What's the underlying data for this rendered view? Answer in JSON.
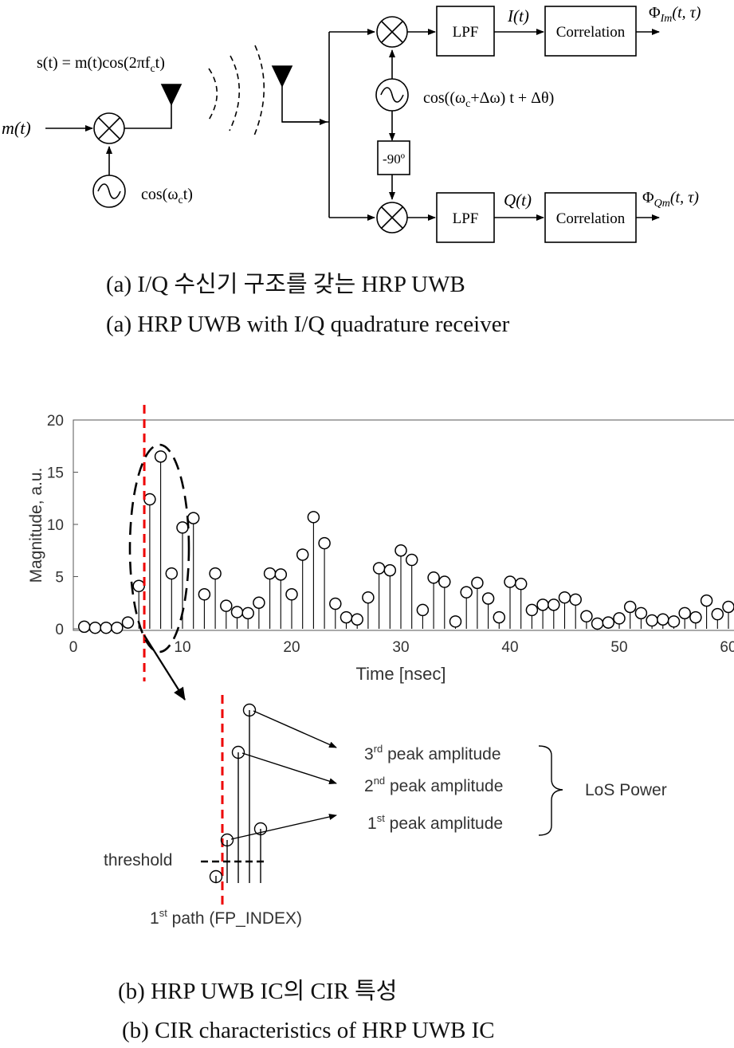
{
  "block_diagram": {
    "transmit_signal": "s(t) = m(t)cos(2πf",
    "transmit_signal_sub": "c",
    "transmit_signal_tail": "t)",
    "input_label": "m(t)",
    "tx_oscillator": "cos(ω",
    "tx_oscillator_sub": "c",
    "tx_oscillator_tail": "t)",
    "rx_oscillator": "cos((ω",
    "rx_oscillator_sub": "c",
    "rx_oscillator_tail": "+Δω) t + Δθ)",
    "phase_shift": "-90º",
    "lpf_top": "LPF",
    "lpf_bottom": "LPF",
    "i_label": "I(t)",
    "q_label": "Q(t)",
    "corr_top": "Correlation",
    "corr_bottom": "Correlation",
    "out_top_main": "Φ",
    "out_top_sub": "Im",
    "out_top_tail": "(t, τ)",
    "out_bottom_main": "Φ",
    "out_bottom_sub": "Qm",
    "out_bottom_tail": "(t, τ)"
  },
  "caption_a_ko": "(a) I/Q 수신기 구조를 갖는 HRP UWB",
  "caption_a_en": "(a) HRP UWB with I/Q quadrature receiver",
  "chart_data": {
    "type": "stem",
    "xlabel": "Time [nsec]",
    "ylabel": "Magnitude, a.u.",
    "xlim": [
      0,
      60
    ],
    "ylim": [
      0,
      20
    ],
    "xticks": [
      0,
      10,
      20,
      30,
      40,
      50,
      60
    ],
    "yticks": [
      0,
      5,
      10,
      15,
      20
    ],
    "first_path_time": 6.5,
    "x": [
      1,
      2,
      3,
      4,
      5,
      6,
      7,
      8,
      9,
      10,
      11,
      12,
      13,
      14,
      15,
      16,
      17,
      18,
      19,
      20,
      21,
      22,
      23,
      24,
      25,
      26,
      27,
      28,
      29,
      30,
      31,
      32,
      33,
      34,
      35,
      36,
      37,
      38,
      39,
      40,
      41,
      42,
      43,
      44,
      45,
      46,
      47,
      48,
      49,
      50,
      51,
      52,
      53,
      54,
      55,
      56,
      57,
      58,
      59,
      60
    ],
    "y": [
      0.2,
      0.1,
      0.1,
      0.1,
      0.6,
      4.1,
      12.4,
      16.5,
      5.3,
      9.7,
      10.6,
      3.3,
      5.3,
      2.2,
      1.6,
      1.5,
      2.5,
      5.3,
      5.2,
      3.3,
      7.1,
      10.7,
      8.2,
      2.4,
      1.1,
      0.9,
      3.0,
      5.8,
      5.6,
      7.5,
      6.6,
      1.8,
      4.9,
      4.5,
      0.7,
      3.5,
      4.4,
      2.9,
      1.1,
      4.5,
      4.3,
      1.8,
      2.3,
      2.3,
      3.0,
      2.8,
      1.2,
      0.5,
      0.6,
      1.0,
      2.1,
      1.5,
      0.8,
      0.9,
      0.7,
      1.5,
      1.1,
      2.7,
      1.4,
      2.1
    ]
  },
  "zoom_detail": {
    "peak3": "3",
    "peak3_sup": "rd",
    "peak3_tail": " peak amplitude",
    "peak2": "2",
    "peak2_sup": "nd",
    "peak2_tail": " peak amplitude",
    "peak1": "1",
    "peak1_sup": "st",
    "peak1_tail": " peak amplitude",
    "los_power": "LoS Power",
    "threshold": "threshold",
    "first_path": "1",
    "first_path_sup": "st",
    "first_path_tail": " path (FP_INDEX)"
  },
  "caption_b_ko": "(b) HRP UWB IC의 CIR 특성",
  "caption_b_en": "(b) CIR characteristics of HRP UWB IC"
}
